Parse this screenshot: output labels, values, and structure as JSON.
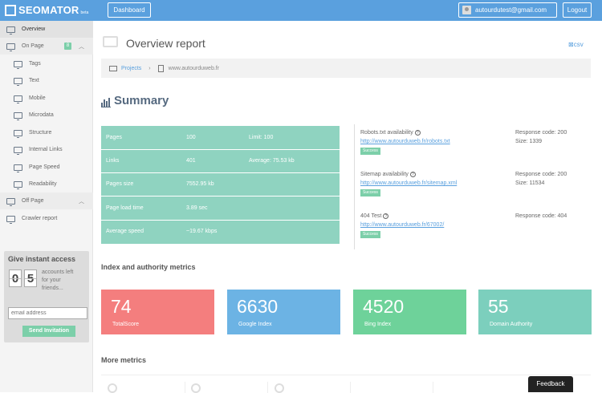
{
  "app": {
    "logo_text": "SEOMATOR",
    "logo_beta": "beta",
    "dashboard_label": "Dashboard",
    "user_email": "autourdutest@gmail.com",
    "logout_label": "Logout"
  },
  "sidebar": {
    "overview": "Overview",
    "on_page": "On Page",
    "on_page_badge": "8",
    "on_page_items": [
      "Tags",
      "Text",
      "Mobile",
      "Microdata",
      "Structure",
      "Internal Links",
      "Page Speed",
      "Readability"
    ],
    "off_page": "Off Page",
    "crawler_report": "Crawler report"
  },
  "promo": {
    "title": "Give instant access",
    "digit1": "0",
    "digit2": "5",
    "text": "accounts left for your friends...",
    "email_placeholder": "email address",
    "button_label": "Send Invitation"
  },
  "header": {
    "title": "Overview report",
    "csv_label": "csv"
  },
  "breadcrumb": {
    "projects": "Projects",
    "separator": "›",
    "site": "www.autourduweb.fr"
  },
  "summary": {
    "title": "Summary",
    "rows": [
      {
        "label": "Pages",
        "value": "100",
        "extra": "Limit: 100"
      },
      {
        "label": "Links",
        "value": "401",
        "extra": "Average: 75.53 kb"
      },
      {
        "label": "Pages size",
        "value": "7552.95 kb",
        "extra": ""
      },
      {
        "label": "Page load time",
        "value": "3.89 sec",
        "extra": ""
      },
      {
        "label": "Average speed",
        "value": "~19.67 kbps",
        "extra": ""
      }
    ],
    "checks": [
      {
        "name": "Robots.txt availability",
        "url": "http://www.autourduweb.fr/robots.txt",
        "status": "Success",
        "code": "Response code: 200",
        "size": "Size: 1339"
      },
      {
        "name": "Sitemap availability",
        "url": "http://www.autourduweb.fr/sitemap.xml",
        "status": "Success",
        "code": "Response code: 200",
        "size": "Size: 11534"
      },
      {
        "name": "404 Test",
        "url": "http://www.autourduweb.fr/67002/",
        "status": "Success",
        "code": "Response code: 404",
        "size": ""
      }
    ]
  },
  "index": {
    "title": "Index and authority metrics",
    "tiles": [
      {
        "value": "74",
        "label": "TotalScore",
        "color": "#f47e7e"
      },
      {
        "value": "6630",
        "label": "Google Index",
        "color": "#6cb3e4"
      },
      {
        "value": "4520",
        "label": "Bing Index",
        "color": "#6ed29a"
      },
      {
        "value": "55",
        "label": "Domain Authority",
        "color": "#7ccfbd"
      }
    ]
  },
  "more": {
    "title": "More metrics"
  },
  "feedback_label": "Feedback"
}
